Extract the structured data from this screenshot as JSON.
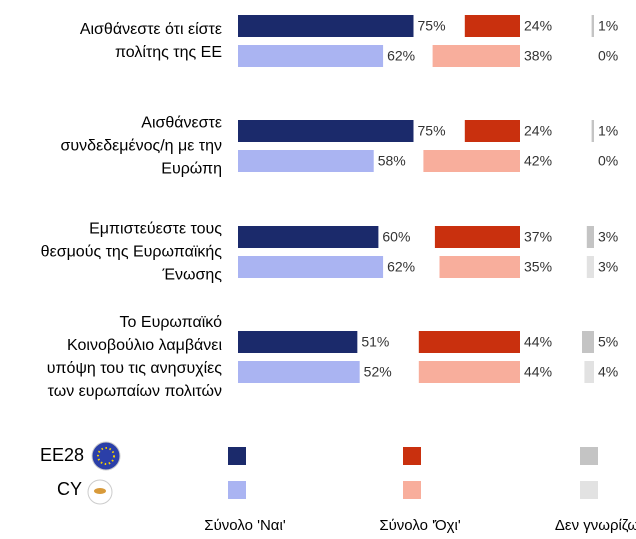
{
  "chart_data": {
    "type": "bar",
    "orientation": "horizontal",
    "categories": [
      "Αισθάνεστε ότι είστε\nπολίτης της ΕΕ",
      "Αισθάνεστε\nσυνδεδεμένος/η με την\nΕυρώπη",
      "Εμπιστεύεστε τους\nθεσμούς της Ευρωπαϊκής\nΈνωσης",
      "Το Ευρωπαϊκό\nΚοινοβούλιο λαμβάνει\nυπόψη του τις ανησυχίες\nτων ευρωπαίων πολιτών"
    ],
    "entities": [
      "EE28",
      "CY"
    ],
    "groups": [
      {
        "name": "Σύνολο 'Ναι'",
        "colors": [
          "#1b2a6b",
          "#aab4f2"
        ],
        "values": [
          [
            75,
            62
          ],
          [
            75,
            58
          ],
          [
            60,
            62
          ],
          [
            51,
            52
          ]
        ],
        "value_labels": [
          [
            "75%",
            "62%"
          ],
          [
            "75%",
            "58%"
          ],
          [
            "60%",
            "62%"
          ],
          [
            "51%",
            "52%"
          ]
        ]
      },
      {
        "name": "Σύνολο 'Όχι'",
        "colors": [
          "#c9300e",
          "#f8ae9c"
        ],
        "values": [
          [
            24,
            38
          ],
          [
            24,
            42
          ],
          [
            37,
            35
          ],
          [
            44,
            44
          ]
        ],
        "value_labels": [
          [
            "24%",
            "38%"
          ],
          [
            "24%",
            "42%"
          ],
          [
            "37%",
            "35%"
          ],
          [
            "44%",
            "44%"
          ]
        ]
      },
      {
        "name": "Δεν γνωρίζω",
        "colors": [
          "#c4c4c4",
          "#e2e2e2"
        ],
        "values": [
          [
            1,
            0
          ],
          [
            1,
            0
          ],
          [
            3,
            3
          ],
          [
            5,
            4
          ]
        ],
        "value_labels": [
          [
            "1%",
            "0%"
          ],
          [
            "1%",
            "0%"
          ],
          [
            "3%",
            "3%"
          ],
          [
            "5%",
            "4%"
          ]
        ]
      }
    ]
  }
}
